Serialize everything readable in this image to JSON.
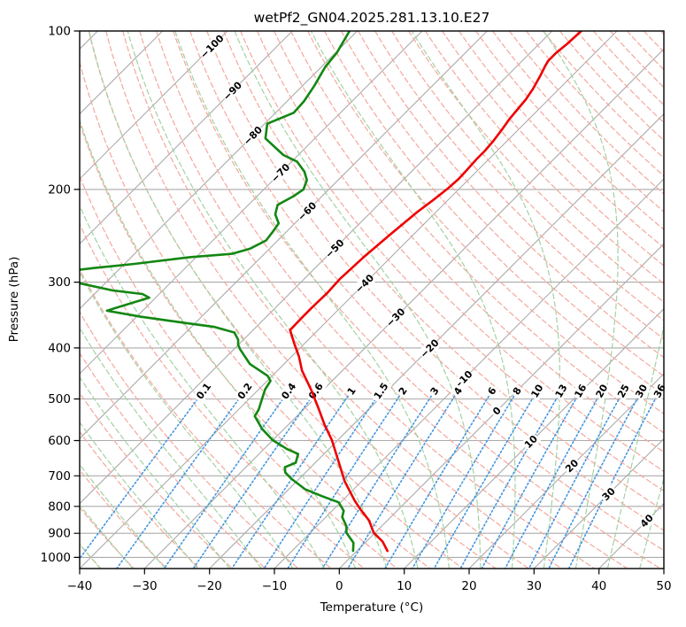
{
  "title": "wetPf2_GN04.2025.281.13.10.E27",
  "axes": {
    "xlabel": "Temperature (°C)",
    "ylabel": "Pressure (hPa)",
    "x_ticks": [
      -40,
      -30,
      -20,
      -10,
      0,
      10,
      20,
      30,
      40,
      50
    ],
    "y_ticks": [
      100,
      200,
      300,
      400,
      500,
      600,
      700,
      800,
      900,
      1000
    ]
  },
  "chart_data": {
    "type": "line",
    "subtype": "skewT_logP_sounding",
    "title": "wetPf2_GN04.2025.281.13.10.E27",
    "xlabel": "Temperature (°C)",
    "ylabel": "Pressure (hPa)",
    "x_range_degC": [
      -40,
      50
    ],
    "pressure_range_hPa": [
      100,
      1050
    ],
    "skew_deg": 45,
    "grid": true,
    "isotherms": {
      "min": -120,
      "max": 50,
      "step": 10
    },
    "isotherm_labels": [
      [
        -100,
        107
      ],
      [
        -90,
        130
      ],
      [
        -80,
        158
      ],
      [
        -70,
        186
      ],
      [
        -60,
        220
      ],
      [
        -50,
        259
      ],
      [
        -40,
        302
      ],
      [
        -30,
        350
      ],
      [
        -20,
        401
      ],
      [
        -10,
        460
      ],
      [
        0,
        527
      ],
      [
        10,
        603
      ],
      [
        20,
        670
      ],
      [
        30,
        758
      ],
      [
        40,
        852
      ]
    ],
    "dry_adiabats_degC": {
      "min": -40,
      "max": 195,
      "step": 5
    },
    "moist_adiabats_degC": {
      "min": -40,
      "max": 45,
      "step": 5
    },
    "mixing_ratios_g_kg": [
      0.1,
      0.2,
      0.4,
      0.6,
      1,
      1.5,
      2,
      3,
      4,
      6,
      8,
      10,
      13,
      16,
      20,
      25,
      30,
      36
    ],
    "mixing_label_pressure_hPa": 483,
    "mixing_line_top_pressure_hPa": 480,
    "series": [
      {
        "name": "temperature",
        "color": "#ee0000",
        "points_p_T": [
          [
            100,
            -45.5
          ],
          [
            106,
            -45.7
          ],
          [
            110,
            -46.0
          ],
          [
            114,
            -46.0
          ],
          [
            117,
            -45.6
          ],
          [
            121,
            -45.0
          ],
          [
            129,
            -44.0
          ],
          [
            135,
            -43.5
          ],
          [
            142,
            -43.2
          ],
          [
            147,
            -43.0
          ],
          [
            153,
            -42.6
          ],
          [
            162,
            -42.1
          ],
          [
            169,
            -41.9
          ],
          [
            175,
            -41.9
          ],
          [
            184,
            -41.7
          ],
          [
            191,
            -41.6
          ],
          [
            199,
            -41.8
          ],
          [
            210,
            -42.3
          ],
          [
            221,
            -42.9
          ],
          [
            244,
            -43.6
          ],
          [
            269,
            -44.2
          ],
          [
            296,
            -44.5
          ],
          [
            314,
            -44.3
          ],
          [
            335,
            -44.4
          ],
          [
            352,
            -44.4
          ],
          [
            370,
            -44.3
          ],
          [
            394,
            -41.4
          ],
          [
            415,
            -38.9
          ],
          [
            442,
            -36.2
          ],
          [
            482,
            -31.7
          ],
          [
            524,
            -27.6
          ],
          [
            560,
            -24.4
          ],
          [
            599,
            -20.9
          ],
          [
            656,
            -16.7
          ],
          [
            717,
            -12.6
          ],
          [
            780,
            -8.1
          ],
          [
            810,
            -5.9
          ],
          [
            851,
            -2.8
          ],
          [
            898,
            -0.2
          ],
          [
            933,
            2.5
          ],
          [
            972,
            4.7
          ]
        ]
      },
      {
        "name": "dewpoint",
        "color": "#128712",
        "points_p_T": [
          [
            100,
            -81.2
          ],
          [
            110,
            -79.8
          ],
          [
            117,
            -79.4
          ],
          [
            127,
            -78.2
          ],
          [
            136,
            -77.4
          ],
          [
            143,
            -77.2
          ],
          [
            150,
            -79.6
          ],
          [
            160,
            -77.6
          ],
          [
            172,
            -72.3
          ],
          [
            177,
            -69.2
          ],
          [
            185,
            -66.5
          ],
          [
            192,
            -64.8
          ],
          [
            200,
            -63.9
          ],
          [
            206,
            -64.4
          ],
          [
            214,
            -65.5
          ],
          [
            223,
            -64.4
          ],
          [
            232,
            -62.5
          ],
          [
            241,
            -62.1
          ],
          [
            250,
            -61.8
          ],
          [
            259,
            -63.0
          ],
          [
            265,
            -65.0
          ],
          [
            269,
            -71.0
          ],
          [
            277,
            -78.5
          ],
          [
            282,
            -84.0
          ],
          [
            288,
            -89.5
          ],
          [
            294,
            -91.5
          ],
          [
            300,
            -84.9
          ],
          [
            311,
            -77.8
          ],
          [
            316,
            -72.6
          ],
          [
            321,
            -71.0
          ],
          [
            335,
            -74.4
          ],
          [
            340,
            -75.5
          ],
          [
            349,
            -69.3
          ],
          [
            358,
            -62.1
          ],
          [
            365,
            -56.4
          ],
          [
            374,
            -52.5
          ],
          [
            386,
            -50.8
          ],
          [
            394,
            -50.1
          ],
          [
            402,
            -49.1
          ],
          [
            429,
            -45.3
          ],
          [
            452,
            -40.7
          ],
          [
            462,
            -39.5
          ],
          [
            480,
            -39.0
          ],
          [
            524,
            -36.9
          ],
          [
            539,
            -36.5
          ],
          [
            570,
            -33.4
          ],
          [
            599,
            -30.0
          ],
          [
            623,
            -26.4
          ],
          [
            636,
            -24.0
          ],
          [
            661,
            -23.0
          ],
          [
            674,
            -24.0
          ],
          [
            690,
            -23.1
          ],
          [
            709,
            -21.2
          ],
          [
            742,
            -17.5
          ],
          [
            765,
            -13.8
          ],
          [
            786,
            -10.3
          ],
          [
            816,
            -8.2
          ],
          [
            838,
            -7.5
          ],
          [
            873,
            -5.4
          ],
          [
            898,
            -4.4
          ],
          [
            938,
            -1.8
          ],
          [
            972,
            -0.6
          ]
        ]
      }
    ]
  },
  "colors": {
    "isobar": "#ababab",
    "isotherm": "#ababab",
    "dry_adiabat": "#f5a79c",
    "moist_adiabat": "#a2d2a2",
    "mixing_line": "#4396e0",
    "label_negative": "#2572b0",
    "label_zero": "#7f7f7f",
    "label_positive": "#d02728",
    "mixing_label": "#2572b0",
    "spine": "#000000"
  }
}
